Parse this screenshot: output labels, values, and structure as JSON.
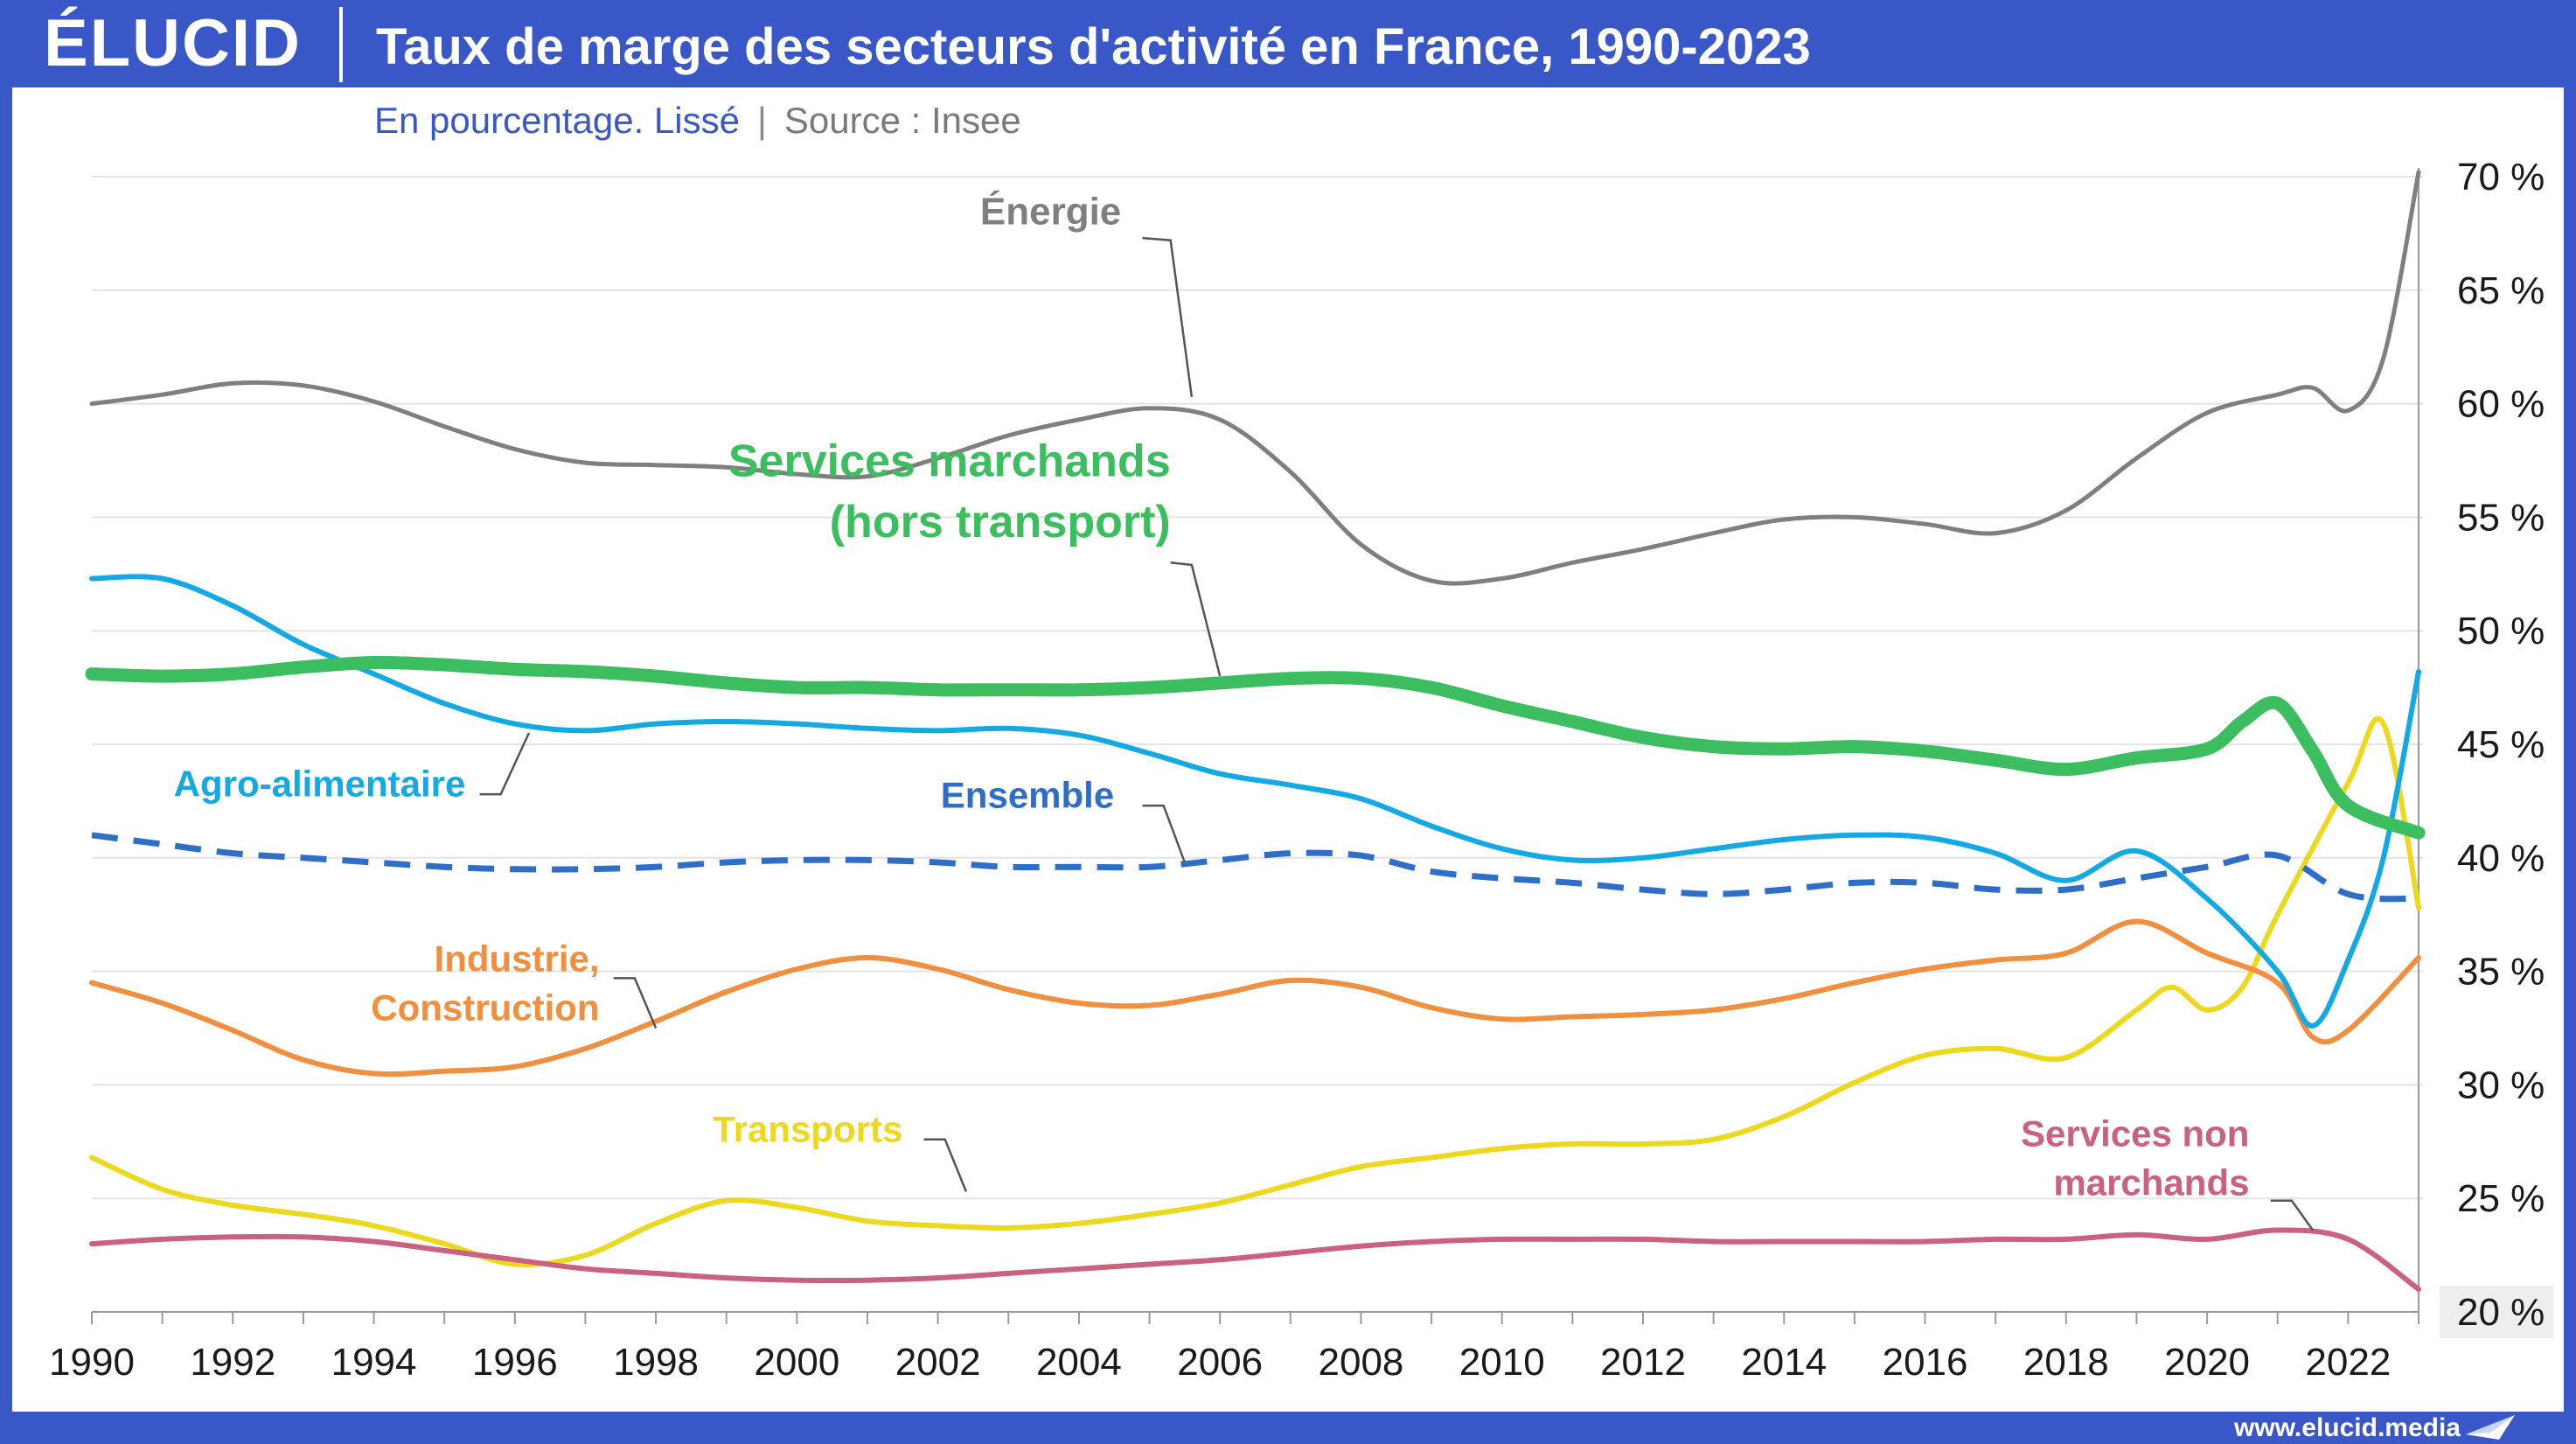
{
  "header": {
    "logo": "ÉLUCID",
    "title": "Taux de marge des secteurs d'activité en France, 1990-2023",
    "subtitle": "En pourcentage. Lissé",
    "separator": "|",
    "source": "Source : Insee"
  },
  "footer": {
    "url": "www.elucid.media"
  },
  "colors": {
    "brand": "#3a57c8",
    "energie": "#7f7f7f",
    "services_marchands": "#3cbd5f",
    "agro": "#14a9e2",
    "ensemble": "#2f6ec7",
    "industrie": "#ef8f3f",
    "transports": "#ecd91f",
    "services_non_marchands": "#c8627e"
  },
  "chart_data": {
    "type": "line",
    "title": "Taux de marge des secteurs d'activité en France, 1990-2023",
    "subtitle": "En pourcentage. Lissé",
    "xlim": [
      1990,
      2023
    ],
    "ylim": [
      20,
      70
    ],
    "x_ticks": [
      1990,
      1992,
      1994,
      1996,
      1998,
      2000,
      2002,
      2004,
      2006,
      2008,
      2010,
      2012,
      2014,
      2016,
      2018,
      2020,
      2022
    ],
    "y_ticks": [
      20,
      25,
      30,
      35,
      40,
      45,
      50,
      55,
      60,
      65,
      70
    ],
    "y_tick_labels": [
      "20 %",
      "25 %",
      "30 %",
      "35 %",
      "40 %",
      "45 %",
      "50 %",
      "55 %",
      "60 %",
      "65 %",
      "70 %"
    ],
    "y_axis_position": "right",
    "grid": "horizontal",
    "legend": "inline labels",
    "series": [
      {
        "name": "Énergie",
        "label_lines": [
          "Énergie"
        ],
        "color": "#7f7f7f",
        "width": 5,
        "dash": "",
        "label_font_size": 44,
        "x": [
          1990,
          1991,
          1992,
          1993,
          1994,
          1995,
          1996,
          1997,
          1998,
          1999,
          2000,
          2001,
          2002,
          2003,
          2004,
          2005,
          2006,
          2007,
          2008,
          2009,
          2010,
          2011,
          2012,
          2013,
          2014,
          2015,
          2016,
          2017,
          2018,
          2019,
          2020,
          2021,
          2021.5,
          2022,
          2022.5,
          2023
        ],
        "values": [
          60.0,
          60.4,
          60.9,
          60.8,
          60.1,
          59.0,
          58.0,
          57.4,
          57.3,
          57.2,
          56.9,
          56.8,
          57.6,
          58.6,
          59.3,
          59.8,
          59.3,
          57.0,
          53.8,
          52.2,
          52.3,
          53.0,
          53.6,
          54.3,
          54.9,
          55.0,
          54.7,
          54.3,
          55.3,
          57.6,
          59.6,
          60.4,
          60.7,
          59.7,
          62.0,
          70.2
        ],
        "label_anchor": "end",
        "label_at": [
          2004.6,
          67.9
        ],
        "leader": [
          [
            2004.9,
            67.3
          ],
          [
            2005.3,
            67.2
          ],
          [
            2005.6,
            60.3
          ]
        ]
      },
      {
        "name": "Services marchands (hors transport)",
        "label_lines": [
          "Services marchands",
          "(hors transport)"
        ],
        "color": "#3cbd5f",
        "width": 15,
        "dash": "",
        "label_font_size": 52,
        "x": [
          1990,
          1991,
          1992,
          1993,
          1994,
          1995,
          1996,
          1997,
          1998,
          1999,
          2000,
          2001,
          2002,
          2003,
          2004,
          2005,
          2006,
          2007,
          2008,
          2009,
          2010,
          2011,
          2012,
          2013,
          2014,
          2015,
          2016,
          2017,
          2018,
          2019,
          2020,
          2020.5,
          2021,
          2021.5,
          2022,
          2023
        ],
        "values": [
          48.1,
          48.0,
          48.1,
          48.4,
          48.6,
          48.5,
          48.3,
          48.2,
          48.0,
          47.7,
          47.5,
          47.5,
          47.4,
          47.4,
          47.4,
          47.5,
          47.7,
          47.9,
          47.9,
          47.5,
          46.7,
          46.0,
          45.3,
          44.9,
          44.8,
          44.9,
          44.7,
          44.3,
          43.9,
          44.4,
          44.8,
          46.0,
          46.8,
          44.7,
          42.3,
          41.1
        ],
        "label_anchor": "end",
        "label_at": [
          2005.3,
          56.8
        ],
        "leader": [
          [
            2005.3,
            53.0
          ],
          [
            2005.6,
            52.9
          ],
          [
            2006.0,
            48.0
          ]
        ]
      },
      {
        "name": "Agro-alimentaire",
        "label_lines": [
          "Agro-alimentaire"
        ],
        "color": "#14a9e2",
        "width": 6,
        "dash": "",
        "label_font_size": 42,
        "x": [
          1990,
          1991,
          1992,
          1993,
          1994,
          1995,
          1996,
          1997,
          1998,
          1999,
          2000,
          2001,
          2002,
          2003,
          2004,
          2005,
          2006,
          2007,
          2008,
          2009,
          2010,
          2011,
          2012,
          2013,
          2014,
          2015,
          2016,
          2017,
          2018,
          2019,
          2020,
          2021,
          2021.5,
          2022,
          2022.5,
          2023
        ],
        "values": [
          52.3,
          52.3,
          51.1,
          49.4,
          48.1,
          46.8,
          45.9,
          45.6,
          45.9,
          46.0,
          45.9,
          45.7,
          45.6,
          45.7,
          45.4,
          44.6,
          43.7,
          43.2,
          42.6,
          41.4,
          40.4,
          39.9,
          40.0,
          40.4,
          40.8,
          41.0,
          40.9,
          40.2,
          39.0,
          40.3,
          38.2,
          35.0,
          32.6,
          35.5,
          40.0,
          48.2
        ],
        "label_anchor": "end",
        "label_at": [
          1995.3,
          42.7
        ],
        "leader": [
          [
            1995.5,
            42.8
          ],
          [
            1995.8,
            42.8
          ],
          [
            1996.2,
            45.5
          ]
        ]
      },
      {
        "name": "Ensemble",
        "label_lines": [
          "Ensemble"
        ],
        "color": "#2f6ec7",
        "width": 7,
        "dash": "30,18",
        "label_font_size": 42,
        "x": [
          1990,
          1991,
          1992,
          1993,
          1994,
          1995,
          1996,
          1997,
          1998,
          1999,
          2000,
          2001,
          2002,
          2003,
          2004,
          2005,
          2006,
          2007,
          2008,
          2009,
          2010,
          2011,
          2012,
          2013,
          2014,
          2015,
          2016,
          2017,
          2018,
          2019,
          2020,
          2021,
          2022,
          2023
        ],
        "values": [
          41.0,
          40.6,
          40.2,
          40.0,
          39.8,
          39.6,
          39.5,
          39.5,
          39.6,
          39.8,
          39.9,
          39.9,
          39.8,
          39.6,
          39.6,
          39.6,
          39.9,
          40.2,
          40.1,
          39.4,
          39.1,
          38.9,
          38.6,
          38.4,
          38.6,
          38.9,
          38.9,
          38.6,
          38.6,
          39.1,
          39.6,
          40.1,
          38.4,
          38.2
        ],
        "label_anchor": "end",
        "label_at": [
          2004.5,
          42.2
        ],
        "leader": [
          [
            2004.9,
            42.3
          ],
          [
            2005.2,
            42.3
          ],
          [
            2005.5,
            39.8
          ]
        ]
      },
      {
        "name": "Industrie, Construction",
        "label_lines": [
          "Industrie,",
          "Construction"
        ],
        "color": "#ef8f3f",
        "width": 6,
        "dash": "",
        "label_font_size": 42,
        "x": [
          1990,
          1991,
          1992,
          1993,
          1994,
          1995,
          1996,
          1997,
          1998,
          1999,
          2000,
          2001,
          2002,
          2003,
          2004,
          2005,
          2006,
          2007,
          2008,
          2009,
          2010,
          2011,
          2012,
          2013,
          2014,
          2015,
          2016,
          2017,
          2018,
          2019,
          2020,
          2021,
          2021.5,
          2022,
          2023
        ],
        "values": [
          34.5,
          33.6,
          32.4,
          31.1,
          30.5,
          30.6,
          30.8,
          31.6,
          32.8,
          34.1,
          35.1,
          35.6,
          35.1,
          34.2,
          33.6,
          33.5,
          34.0,
          34.6,
          34.3,
          33.4,
          32.9,
          33.0,
          33.1,
          33.3,
          33.8,
          34.5,
          35.1,
          35.5,
          35.8,
          37.2,
          35.8,
          34.5,
          32.1,
          32.4,
          35.6
        ],
        "label_anchor": "end",
        "label_at": [
          1997.2,
          35.0
        ],
        "leader": [
          [
            1997.4,
            34.7
          ],
          [
            1997.7,
            34.7
          ],
          [
            1998.0,
            32.5
          ]
        ]
      },
      {
        "name": "Transports",
        "label_lines": [
          "Transports"
        ],
        "color": "#ecd91f",
        "width": 6,
        "dash": "",
        "label_font_size": 42,
        "x": [
          1990,
          1991,
          1992,
          1993,
          1994,
          1995,
          1996,
          1997,
          1998,
          1999,
          2000,
          2001,
          2002,
          2003,
          2004,
          2005,
          2006,
          2007,
          2008,
          2009,
          2010,
          2011,
          2012,
          2013,
          2014,
          2015,
          2016,
          2017,
          2018,
          2019,
          2019.5,
          2020,
          2020.5,
          2021,
          2022,
          2022.5,
          2023
        ],
        "values": [
          26.8,
          25.4,
          24.7,
          24.3,
          23.8,
          23.0,
          22.1,
          22.5,
          23.9,
          24.9,
          24.6,
          24.0,
          23.8,
          23.7,
          23.9,
          24.3,
          24.8,
          25.6,
          26.4,
          26.8,
          27.2,
          27.4,
          27.4,
          27.6,
          28.6,
          30.1,
          31.3,
          31.6,
          31.2,
          33.3,
          34.3,
          33.3,
          34.3,
          37.5,
          43.3,
          45.9,
          37.8
        ],
        "label_anchor": "end",
        "label_at": [
          2001.5,
          27.5
        ],
        "leader": [
          [
            2001.8,
            27.6
          ],
          [
            2002.1,
            27.6
          ],
          [
            2002.4,
            25.3
          ]
        ]
      },
      {
        "name": "Services non marchands",
        "label_lines": [
          "Services non",
          "marchands"
        ],
        "color": "#c8627e",
        "width": 6,
        "dash": "",
        "label_font_size": 42,
        "x": [
          1990,
          1991,
          1992,
          1993,
          1994,
          1995,
          1996,
          1997,
          1998,
          1999,
          2000,
          2001,
          2002,
          2003,
          2004,
          2005,
          2006,
          2007,
          2008,
          2009,
          2010,
          2011,
          2012,
          2013,
          2014,
          2015,
          2016,
          2017,
          2018,
          2019,
          2020,
          2021,
          2022,
          2023
        ],
        "values": [
          23.0,
          23.2,
          23.3,
          23.3,
          23.1,
          22.7,
          22.3,
          21.9,
          21.7,
          21.5,
          21.4,
          21.4,
          21.5,
          21.7,
          21.9,
          22.1,
          22.3,
          22.6,
          22.9,
          23.1,
          23.2,
          23.2,
          23.2,
          23.1,
          23.1,
          23.1,
          23.1,
          23.2,
          23.2,
          23.4,
          23.2,
          23.6,
          23.2,
          21.0
        ],
        "label_anchor": "end",
        "label_at": [
          2020.6,
          27.3
        ],
        "leader": [
          [
            2020.9,
            24.9
          ],
          [
            2021.2,
            24.9
          ],
          [
            2021.5,
            23.6
          ]
        ]
      }
    ]
  }
}
